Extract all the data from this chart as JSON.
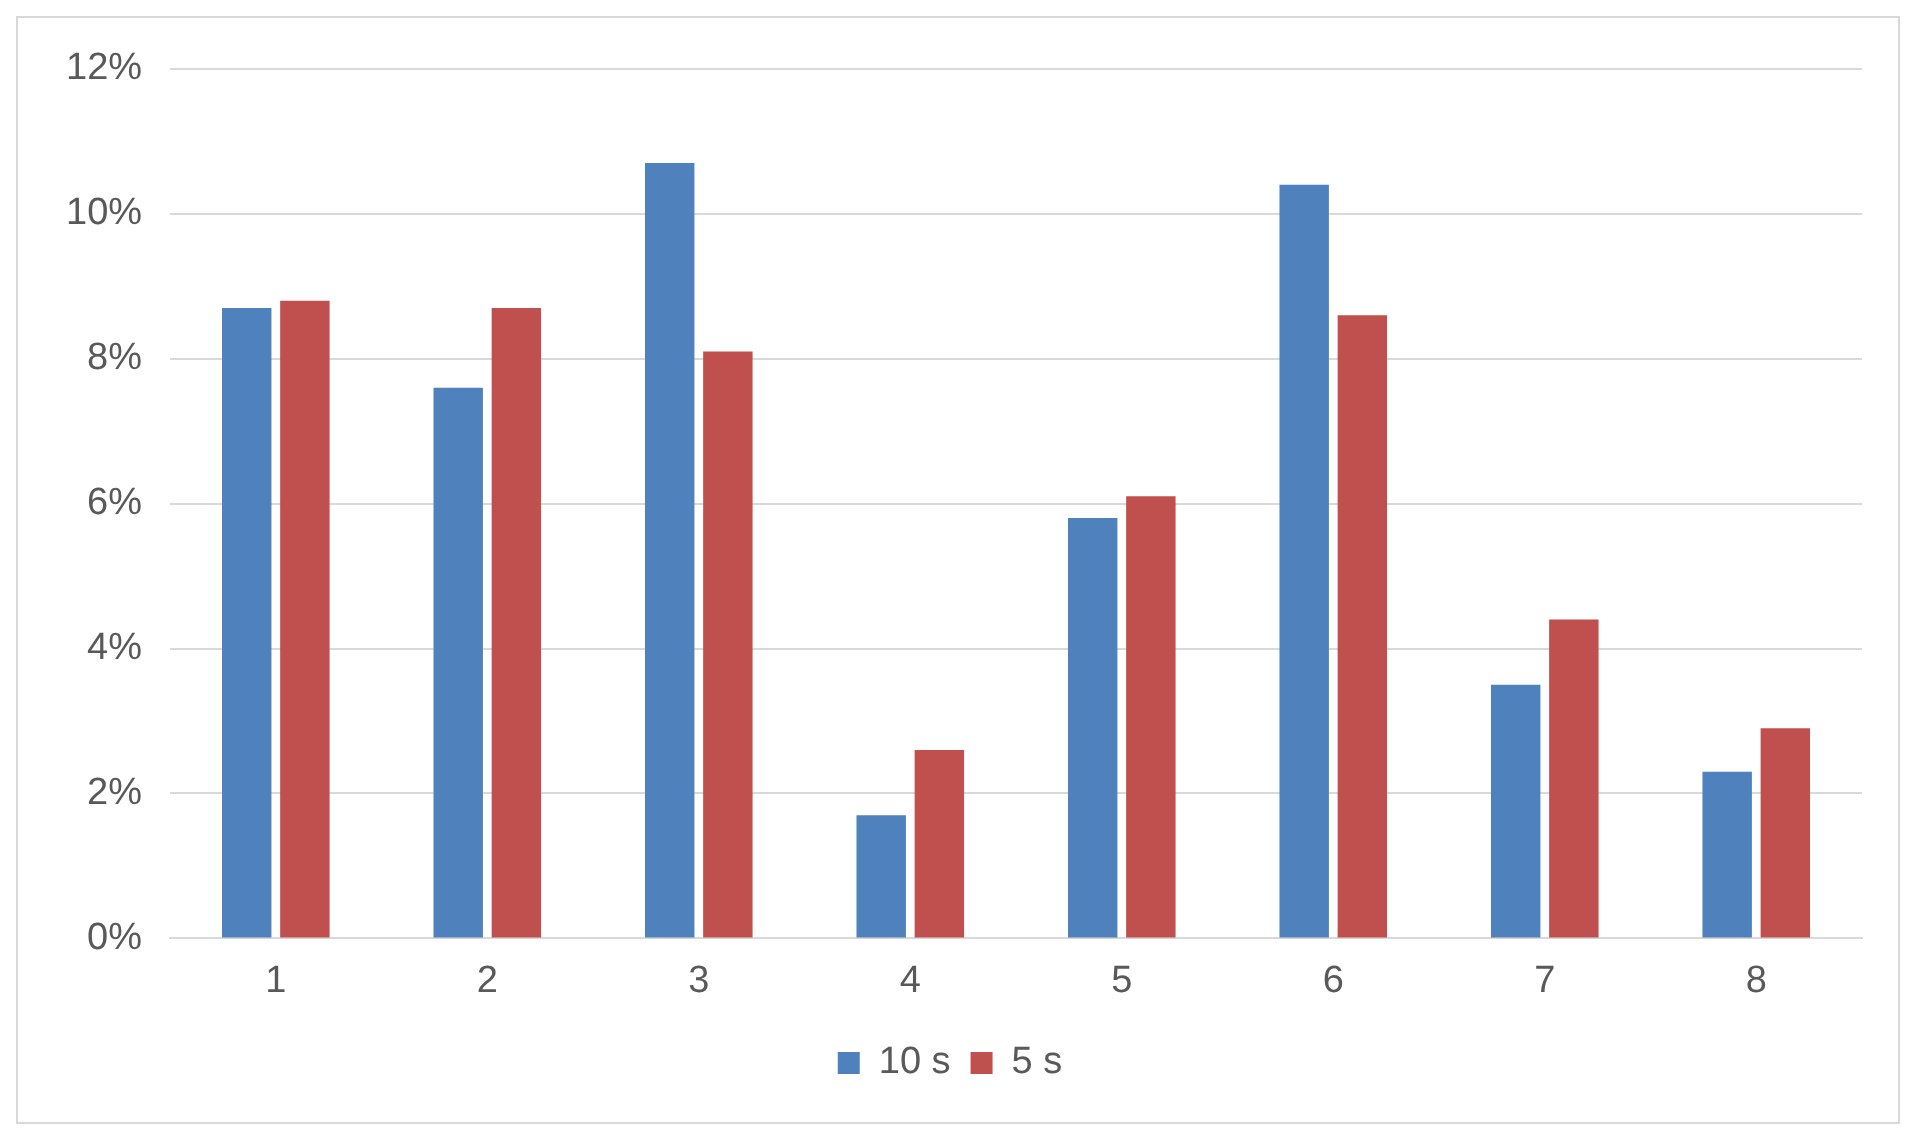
{
  "chart_data": {
    "type": "bar",
    "categories": [
      "1",
      "2",
      "3",
      "4",
      "5",
      "6",
      "7",
      "8"
    ],
    "series": [
      {
        "name": "10 s",
        "color": "#4f81bd",
        "values": [
          8.7,
          7.6,
          10.7,
          1.7,
          5.8,
          10.4,
          3.5,
          2.3
        ]
      },
      {
        "name": "5 s",
        "color": "#c0504d",
        "values": [
          8.8,
          8.7,
          8.1,
          2.6,
          6.1,
          8.6,
          4.4,
          2.9
        ]
      }
    ],
    "ylim": [
      0,
      12
    ],
    "yticks": [
      {
        "value": 0,
        "label": "0%"
      },
      {
        "value": 2,
        "label": "2%"
      },
      {
        "value": 4,
        "label": "4%"
      },
      {
        "value": 6,
        "label": "6%"
      },
      {
        "value": 8,
        "label": "8%"
      },
      {
        "value": 10,
        "label": "10%"
      },
      {
        "value": 12,
        "label": "12%"
      }
    ],
    "grid": "y",
    "legend": "bottom"
  }
}
